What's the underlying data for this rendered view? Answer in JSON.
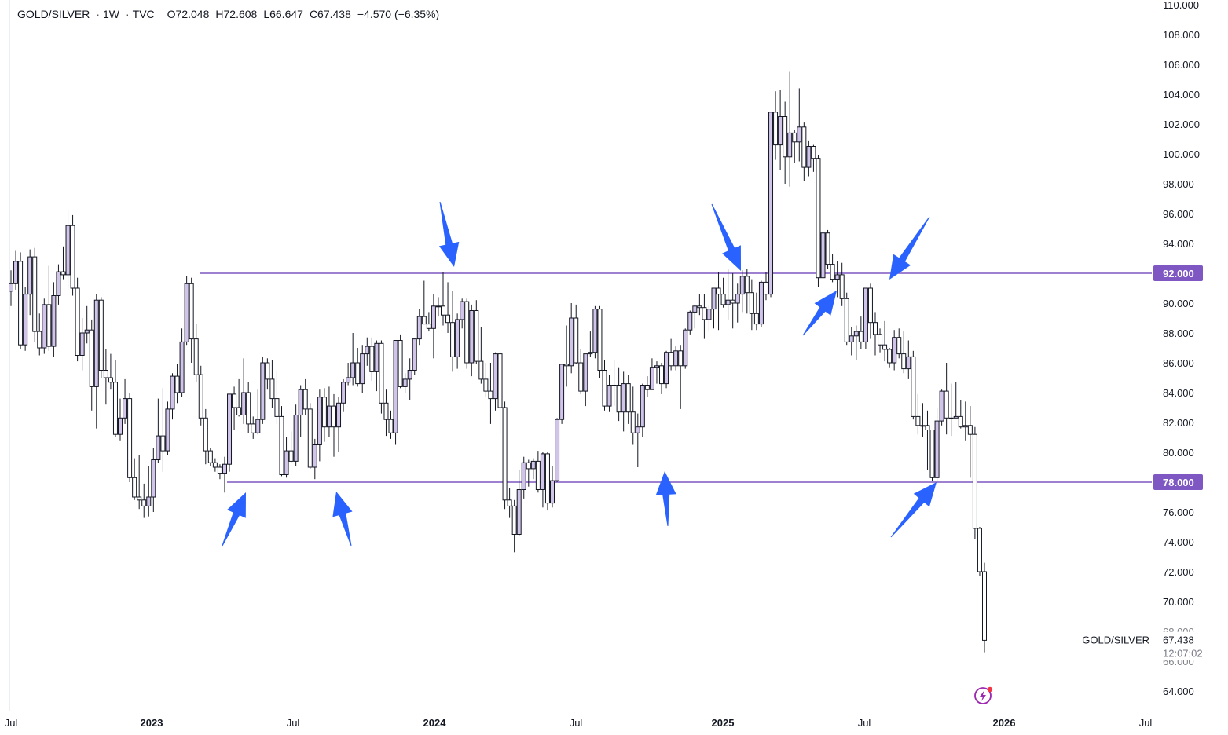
{
  "legend": {
    "symbol": "GOLD/SILVER",
    "interval": "1W",
    "source": "TVC",
    "sep": "·",
    "open": "O72.048",
    "high": "H72.608",
    "low": "L66.647",
    "close": "C67.438",
    "change": "−4.570 (−6.35%)"
  },
  "price_tag": {
    "symbol": "GOLD/SILVER",
    "price": "67.438",
    "countdown": "12:07:02"
  },
  "colors": {
    "up": "#d1c4e9",
    "down": "#ffffff",
    "wick": "#131722",
    "level_line": "#7e57c2",
    "arrow": "#2962ff",
    "accent_icon": "#9c27b0"
  },
  "icons": {
    "flash": "lightning-icon"
  },
  "chart_data": {
    "type": "candlestick",
    "ylim": [
      63,
      110
    ],
    "y_ticks": [
      "64.000",
      "66.000",
      "68.000",
      "70.000",
      "72.000",
      "74.000",
      "76.000",
      "78.000",
      "80.000",
      "82.000",
      "84.000",
      "86.000",
      "88.000",
      "90.000",
      "92.000",
      "94.000",
      "96.000",
      "98.000",
      "100.000",
      "102.000",
      "104.000",
      "106.000",
      "108.000",
      "110.000"
    ],
    "x_ticks": [
      {
        "label": "Jul",
        "bold": false
      },
      {
        "label": "2023",
        "bold": true
      },
      {
        "label": "Jul",
        "bold": false
      },
      {
        "label": "2024",
        "bold": true
      },
      {
        "label": "Jul",
        "bold": false
      },
      {
        "label": "2025",
        "bold": true
      },
      {
        "label": "Jul",
        "bold": false
      },
      {
        "label": "2026",
        "bold": true
      },
      {
        "label": "Jul",
        "bold": false
      }
    ],
    "levels": [
      {
        "label": "92.000",
        "value": 92
      },
      {
        "label": "78.000",
        "value": 78
      }
    ],
    "last_price": 67.438,
    "candles": [
      [
        90.8,
        92.2,
        89.8,
        91.3
      ],
      [
        91.3,
        93.5,
        90.9,
        92.8
      ],
      [
        92.8,
        93.4,
        86.9,
        87.2
      ],
      [
        87.2,
        91.1,
        86.8,
        90.6
      ],
      [
        90.6,
        93.6,
        89.2,
        93.1
      ],
      [
        93.1,
        93.7,
        87.4,
        88.1
      ],
      [
        88.1,
        89.3,
        86.5,
        87.0
      ],
      [
        87.0,
        90.3,
        86.6,
        89.9
      ],
      [
        89.9,
        92.5,
        86.8,
        87.1
      ],
      [
        87.1,
        91.4,
        86.4,
        90.5
      ],
      [
        90.5,
        92.6,
        89.9,
        92.1
      ],
      [
        92.1,
        93.8,
        91.6,
        91.9
      ],
      [
        91.9,
        96.2,
        90.9,
        95.2
      ],
      [
        95.2,
        95.9,
        90.5,
        91.0
      ],
      [
        91.0,
        91.7,
        86.1,
        86.5
      ],
      [
        86.5,
        89.0,
        85.5,
        88.0
      ],
      [
        88.0,
        89.8,
        87.3,
        88.2
      ],
      [
        88.2,
        88.9,
        82.8,
        84.4
      ],
      [
        84.4,
        90.6,
        81.6,
        90.2
      ],
      [
        90.2,
        90.4,
        85.0,
        85.5
      ],
      [
        85.5,
        86.9,
        83.2,
        85.0
      ],
      [
        85.0,
        86.6,
        84.2,
        84.7
      ],
      [
        84.7,
        86.2,
        81.0,
        81.2
      ],
      [
        81.2,
        83.6,
        80.8,
        82.3
      ],
      [
        82.3,
        84.9,
        81.9,
        83.6
      ],
      [
        83.6,
        84.0,
        78.0,
        78.3
      ],
      [
        78.3,
        79.6,
        76.8,
        77.0
      ],
      [
        77.0,
        79.8,
        76.2,
        76.8
      ],
      [
        76.8,
        77.9,
        75.6,
        76.4
      ],
      [
        76.4,
        79.1,
        75.7,
        77.0
      ],
      [
        77.0,
        80.3,
        76.0,
        79.5
      ],
      [
        79.5,
        83.6,
        79.3,
        81.1
      ],
      [
        81.1,
        84.3,
        78.7,
        80.1
      ],
      [
        80.1,
        83.4,
        79.8,
        82.9
      ],
      [
        82.9,
        85.3,
        82.2,
        85.1
      ],
      [
        85.1,
        85.9,
        83.3,
        84.0
      ],
      [
        84.0,
        88.3,
        83.7,
        87.4
      ],
      [
        87.4,
        91.8,
        87.2,
        91.3
      ],
      [
        91.3,
        91.7,
        86.0,
        87.6
      ],
      [
        87.6,
        88.6,
        84.7,
        85.2
      ],
      [
        85.2,
        85.8,
        81.8,
        82.3
      ],
      [
        82.3,
        82.9,
        79.2,
        80.1
      ],
      [
        80.1,
        80.3,
        79.1,
        79.3
      ],
      [
        79.3,
        79.6,
        78.7,
        79.0
      ],
      [
        79.0,
        79.2,
        78.2,
        78.6
      ],
      [
        78.6,
        79.7,
        77.3,
        79.2
      ],
      [
        79.2,
        83.9,
        78.7,
        83.9
      ],
      [
        83.9,
        84.4,
        81.5,
        83.0
      ],
      [
        83.0,
        84.9,
        82.4,
        82.5
      ],
      [
        82.5,
        86.3,
        81.9,
        84.0
      ],
      [
        84.0,
        84.7,
        81.3,
        81.9
      ],
      [
        81.9,
        82.4,
        80.9,
        81.3
      ],
      [
        81.3,
        84.2,
        81.2,
        82.2
      ],
      [
        82.2,
        86.4,
        81.9,
        86.0
      ],
      [
        86.0,
        86.3,
        84.2,
        84.9
      ],
      [
        84.9,
        86.2,
        83.0,
        83.6
      ],
      [
        83.6,
        85.5,
        81.9,
        82.4
      ],
      [
        82.4,
        83.1,
        78.4,
        78.5
      ],
      [
        78.5,
        81.0,
        78.3,
        80.1
      ],
      [
        80.1,
        81.4,
        79.3,
        79.4
      ],
      [
        79.4,
        83.2,
        79.1,
        82.5
      ],
      [
        82.5,
        84.5,
        81.0,
        84.2
      ],
      [
        84.2,
        84.9,
        82.5,
        82.9
      ],
      [
        82.9,
        83.3,
        78.9,
        79.0
      ],
      [
        79.0,
        80.9,
        78.2,
        80.5
      ],
      [
        80.5,
        84.2,
        79.4,
        83.7
      ],
      [
        83.7,
        84.3,
        80.7,
        81.7
      ],
      [
        81.7,
        84.4,
        81.0,
        83.1
      ],
      [
        83.1,
        83.9,
        79.7,
        81.7
      ],
      [
        81.7,
        83.7,
        80.0,
        83.3
      ],
      [
        83.3,
        84.9,
        82.7,
        84.7
      ],
      [
        84.7,
        86.0,
        84.5,
        85.0
      ],
      [
        85.0,
        88.0,
        84.5,
        86.0
      ],
      [
        86.0,
        87.0,
        84.4,
        84.6
      ],
      [
        84.6,
        87.2,
        84.0,
        86.6
      ],
      [
        86.6,
        87.7,
        85.8,
        87.1
      ],
      [
        87.1,
        87.7,
        84.8,
        85.4
      ],
      [
        85.4,
        87.5,
        84.1,
        87.3
      ],
      [
        87.3,
        87.5,
        82.6,
        83.3
      ],
      [
        83.3,
        84.2,
        81.1,
        82.2
      ],
      [
        82.2,
        82.8,
        80.9,
        81.3
      ],
      [
        81.3,
        87.5,
        80.5,
        87.5
      ],
      [
        87.5,
        87.9,
        84.3,
        84.4
      ],
      [
        84.4,
        85.3,
        84.0,
        84.9
      ],
      [
        84.9,
        86.3,
        83.5,
        85.5
      ],
      [
        85.5,
        87.6,
        85.2,
        87.6
      ],
      [
        87.6,
        89.6,
        87.2,
        89.1
      ],
      [
        89.1,
        91.5,
        88.6,
        88.6
      ],
      [
        88.6,
        89.4,
        88.1,
        88.3
      ],
      [
        88.3,
        90.6,
        86.3,
        89.8
      ],
      [
        89.8,
        90.4,
        89.1,
        89.8
      ],
      [
        89.8,
        92.1,
        88.5,
        89.2
      ],
      [
        89.2,
        91.4,
        88.0,
        88.7
      ],
      [
        88.7,
        90.8,
        85.4,
        86.4
      ],
      [
        86.4,
        89.3,
        85.6,
        88.9
      ],
      [
        88.9,
        90.3,
        88.3,
        90.1
      ],
      [
        90.1,
        90.3,
        85.6,
        86.0
      ],
      [
        86.0,
        89.9,
        85.1,
        89.5
      ],
      [
        89.5,
        90.2,
        85.9,
        86.1
      ],
      [
        86.1,
        88.4,
        84.6,
        84.9
      ],
      [
        84.9,
        86.0,
        83.7,
        84.1
      ],
      [
        84.1,
        86.0,
        81.9,
        83.6
      ],
      [
        83.6,
        86.7,
        82.8,
        86.6
      ],
      [
        86.6,
        86.8,
        81.2,
        83.0
      ],
      [
        83.0,
        83.4,
        76.2,
        76.8
      ],
      [
        76.8,
        77.6,
        75.6,
        76.4
      ],
      [
        76.4,
        76.8,
        73.3,
        74.5
      ],
      [
        74.5,
        78.8,
        74.4,
        77.5
      ],
      [
        77.5,
        79.7,
        76.9,
        79.3
      ],
      [
        79.3,
        79.5,
        77.7,
        78.9
      ],
      [
        78.9,
        79.6,
        78.2,
        79.4
      ],
      [
        79.4,
        80.1,
        77.3,
        77.5
      ],
      [
        77.5,
        80.0,
        76.3,
        79.9
      ],
      [
        79.9,
        80.0,
        76.1,
        76.6
      ],
      [
        76.6,
        79.1,
        76.3,
        78.1
      ],
      [
        78.1,
        82.3,
        78.0,
        82.2
      ],
      [
        82.2,
        85.9,
        81.9,
        85.9
      ],
      [
        85.9,
        88.5,
        84.4,
        85.8
      ],
      [
        85.8,
        90.0,
        85.3,
        89.0
      ],
      [
        89.0,
        89.9,
        85.9,
        86.0
      ],
      [
        86.0,
        86.9,
        83.9,
        84.1
      ],
      [
        84.1,
        86.6,
        83.1,
        86.6
      ],
      [
        86.6,
        88.1,
        86.4,
        86.7
      ],
      [
        86.7,
        89.8,
        86.3,
        89.6
      ],
      [
        89.6,
        89.8,
        85.0,
        85.5
      ],
      [
        85.5,
        86.2,
        82.8,
        83.1
      ],
      [
        83.1,
        85.2,
        82.7,
        84.5
      ],
      [
        84.5,
        86.2,
        83.1,
        84.5
      ],
      [
        84.5,
        85.7,
        82.1,
        82.7
      ],
      [
        82.7,
        85.4,
        81.4,
        84.6
      ],
      [
        84.6,
        85.2,
        81.9,
        82.7
      ],
      [
        82.7,
        84.4,
        80.5,
        81.3
      ],
      [
        81.3,
        82.6,
        79.0,
        81.7
      ],
      [
        81.7,
        84.6,
        81.0,
        84.5
      ],
      [
        84.5,
        85.1,
        83.7,
        84.2
      ],
      [
        84.2,
        86.3,
        84.2,
        85.7
      ],
      [
        85.7,
        86.1,
        84.6,
        85.8
      ],
      [
        85.8,
        86.0,
        83.9,
        84.6
      ],
      [
        84.6,
        86.8,
        84.3,
        86.7
      ],
      [
        86.7,
        87.6,
        85.5,
        85.8
      ],
      [
        85.8,
        87.1,
        85.5,
        86.8
      ],
      [
        86.8,
        87.2,
        82.9,
        85.8
      ],
      [
        85.8,
        88.3,
        85.6,
        88.2
      ],
      [
        88.2,
        89.5,
        87.9,
        89.4
      ],
      [
        89.4,
        89.9,
        88.3,
        89.8
      ],
      [
        89.8,
        90.6,
        89.2,
        89.7
      ],
      [
        89.7,
        90.6,
        87.6,
        88.9
      ],
      [
        88.9,
        89.9,
        88.1,
        89.6
      ],
      [
        89.6,
        91.0,
        88.3,
        91.0
      ],
      [
        91.0,
        92.1,
        88.2,
        90.6
      ],
      [
        90.6,
        91.7,
        89.7,
        89.9
      ],
      [
        89.9,
        92.3,
        88.9,
        90.2
      ],
      [
        90.2,
        92.0,
        88.3,
        90.0
      ],
      [
        90.0,
        91.3,
        88.7,
        90.6
      ],
      [
        90.6,
        92.2,
        89.4,
        91.8
      ],
      [
        91.8,
        92.3,
        89.3,
        90.7
      ],
      [
        90.7,
        91.6,
        88.2,
        89.3
      ],
      [
        89.3,
        90.7,
        88.2,
        88.6
      ],
      [
        88.6,
        91.5,
        88.4,
        91.4
      ],
      [
        91.4,
        92.1,
        90.2,
        90.6
      ],
      [
        90.6,
        102.8,
        90.4,
        102.8
      ],
      [
        102.8,
        104.2,
        99.6,
        100.6
      ],
      [
        100.6,
        104.3,
        98.9,
        102.5
      ],
      [
        102.5,
        103.5,
        98.0,
        99.8
      ],
      [
        99.8,
        105.5,
        97.8,
        101.4
      ],
      [
        101.4,
        101.6,
        99.4,
        100.8
      ],
      [
        100.8,
        104.4,
        99.5,
        101.8
      ],
      [
        101.8,
        102.1,
        98.2,
        99.1
      ],
      [
        99.1,
        100.9,
        98.5,
        100.5
      ],
      [
        100.5,
        100.6,
        98.8,
        99.7
      ],
      [
        99.7,
        99.9,
        91.1,
        91.7
      ],
      [
        91.7,
        94.9,
        91.4,
        94.7
      ],
      [
        94.7,
        94.9,
        92.3,
        92.6
      ],
      [
        92.6,
        93.3,
        91.4,
        91.6
      ],
      [
        91.6,
        92.8,
        90.4,
        91.9
      ],
      [
        91.9,
        92.7,
        89.8,
        90.3
      ],
      [
        90.3,
        90.7,
        87.2,
        87.4
      ],
      [
        87.4,
        88.4,
        86.5,
        87.8
      ],
      [
        87.8,
        88.5,
        86.2,
        88.1
      ],
      [
        88.1,
        89.1,
        86.9,
        87.4
      ],
      [
        87.4,
        91.0,
        86.9,
        91.0
      ],
      [
        91.0,
        91.3,
        87.6,
        88.7
      ],
      [
        88.7,
        89.4,
        86.5,
        87.9
      ],
      [
        87.9,
        88.3,
        86.7,
        87.2
      ],
      [
        87.2,
        88.8,
        86.1,
        86.9
      ],
      [
        86.9,
        87.0,
        85.7,
        86.0
      ],
      [
        86.0,
        88.2,
        85.5,
        87.7
      ],
      [
        87.7,
        88.3,
        86.3,
        86.6
      ],
      [
        86.6,
        88.1,
        85.3,
        85.6
      ],
      [
        85.6,
        87.5,
        84.9,
        86.4
      ],
      [
        86.4,
        86.8,
        82.2,
        82.4
      ],
      [
        82.4,
        83.9,
        81.2,
        81.8
      ],
      [
        81.8,
        83.3,
        81.0,
        81.8
      ],
      [
        81.8,
        82.8,
        78.8,
        81.5
      ],
      [
        81.5,
        81.5,
        78.1,
        78.3
      ],
      [
        78.3,
        83.0,
        78.1,
        82.1
      ],
      [
        82.1,
        84.2,
        81.8,
        84.1
      ],
      [
        84.1,
        86.0,
        81.2,
        82.3
      ],
      [
        82.3,
        84.6,
        81.1,
        82.3
      ],
      [
        82.3,
        84.7,
        82.3,
        82.4
      ],
      [
        82.4,
        83.5,
        81.6,
        81.7
      ],
      [
        81.7,
        83.4,
        80.8,
        81.8
      ],
      [
        81.8,
        83.1,
        78.3,
        81.2
      ],
      [
        81.2,
        81.7,
        74.2,
        74.9
      ],
      [
        74.9,
        75.0,
        71.7,
        72.0
      ],
      [
        72.0,
        72.6,
        66.6,
        67.4
      ]
    ]
  }
}
